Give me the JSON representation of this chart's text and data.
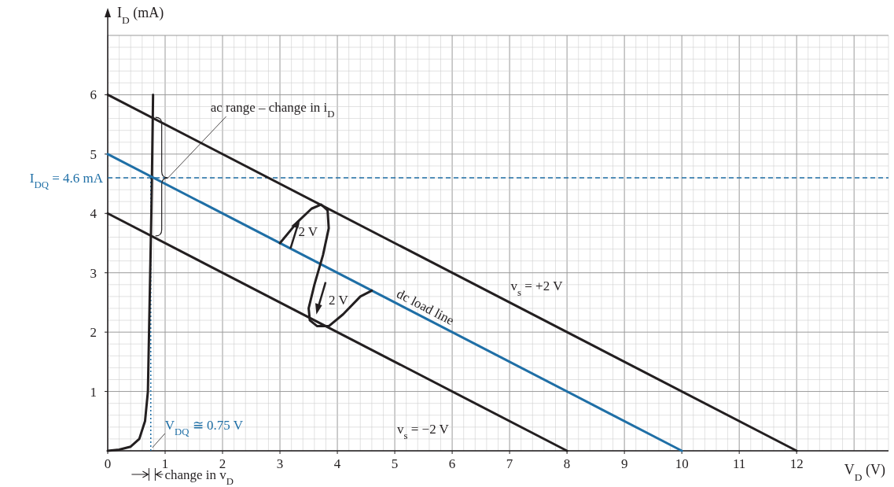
{
  "chart_data": {
    "type": "line",
    "xlabel": "V$_{D}$ (V)",
    "ylabel": "I$_{D}$ (mA)",
    "xlim": [
      0,
      13.6
    ],
    "ylim": [
      0,
      7
    ],
    "xticks": [
      0,
      1,
      2,
      3,
      4,
      5,
      6,
      7,
      8,
      9,
      10,
      11,
      12
    ],
    "yticks": [
      1,
      2,
      3,
      4,
      5,
      6
    ],
    "grid": true,
    "legend": false,
    "marker": "none",
    "line_style": "solid",
    "series": [
      {
        "color": "#231f20",
        "x": [
          0,
          0.2,
          0.4,
          0.55,
          0.65,
          0.7,
          0.72,
          0.74,
          0.76,
          0.77,
          0.79
        ],
        "values": [
          0,
          0.02,
          0.07,
          0.2,
          0.5,
          1,
          2,
          3,
          4,
          4.6,
          6
        ]
      },
      {
        "name": "v$_{s}$ = +2 V",
        "color": "#231f20",
        "x": [
          0,
          12
        ],
        "values": [
          6,
          0
        ]
      },
      {
        "name": "dc load line",
        "color": "#1f6fa6",
        "x": [
          0,
          10
        ],
        "values": [
          5,
          0
        ]
      },
      {
        "name": "v$_{s}$ = −2 V",
        "color": "#231f20",
        "x": [
          0,
          8
        ],
        "values": [
          4,
          0
        ]
      },
      {
        "color": "#231f20",
        "x": [
          3,
          3.3,
          3.55,
          3.72,
          3.83,
          3.85,
          3.75,
          3.6,
          3.5,
          3.52,
          3.65,
          3.85,
          4.1,
          4.4,
          4.6
        ],
        "values": [
          3.5,
          3.85,
          4.08,
          4.15,
          4.05,
          3.75,
          3.3,
          2.8,
          2.4,
          2.2,
          2.1,
          2.1,
          2.3,
          2.6,
          2.7
        ]
      }
    ],
    "ref_lines": [
      {
        "axis": "y",
        "value": 4.6,
        "label": "I$_{DQ}$ = 4.6 mA",
        "color": "#1f6fa6",
        "line_style": "dashed"
      },
      {
        "axis": "x",
        "value": 0.75,
        "label": "V$_{DQ}$ ≅ 0.75 V",
        "color": "#1f6fa6",
        "line_style": "dotted"
      }
    ],
    "annotations": [
      {
        "text": "ac range – change in i$_{D}$",
        "x": 1.05,
        "y": 4.6
      },
      "2 V",
      "2 V",
      "change in v$_{D}$"
    ]
  }
}
